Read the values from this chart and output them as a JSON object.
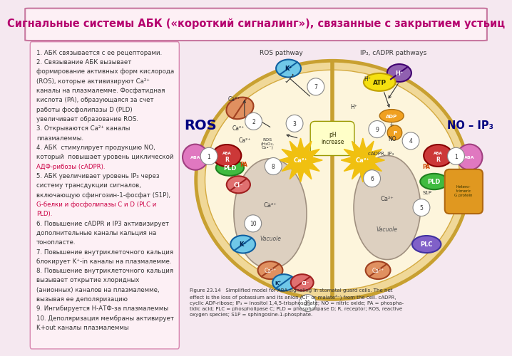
{
  "title": "Сигнальные системы АБК («короткий сигналинг»), связанные с закрытием устьиц",
  "title_color": "#b5006e",
  "title_bg": "#fdf0f5",
  "title_border": "#c878a0",
  "title_fontsize": 10.5,
  "left_text_bg": "#fdf0f5",
  "left_text_border": "#d888b0",
  "left_text_lines": [
    [
      "1. АБК связывается с ее рецепторами.",
      "black"
    ],
    [
      "2. Связывание ",
      "black"
    ],
    [
      "АБК",
      "red"
    ],
    [
      " вызывает",
      "black"
    ],
    [
      "формирование активных форм кислорода",
      "black"
    ],
    [
      "(ROS),",
      "red"
    ],
    [
      " которые активизируют ",
      "black"
    ],
    [
      "Ca²⁺",
      "red"
    ],
    [
      "каналы на плазмалемме. ",
      "black"
    ],
    [
      "Фосфатидная",
      "red"
    ],
    [
      "кислота (PA),",
      "red"
    ],
    [
      " образующаяся за счет",
      "black"
    ],
    [
      "работы ",
      "black"
    ],
    [
      "фосфолипазы D (PLD)",
      "red"
    ],
    [
      "увеличивает образование ",
      "black"
    ],
    [
      "ROS.",
      "red"
    ],
    [
      "3. Открываются ",
      "black"
    ],
    [
      "Ca²⁺ каналы",
      "red"
    ],
    [
      "плазмалеммы.",
      "black"
    ],
    [
      "4. АБК  стимулирует продукцию ",
      "black"
    ],
    [
      "NO,",
      "red"
    ],
    [
      "который  повышает уровень циклической",
      "black"
    ],
    [
      "АДФ-рибозы (cADPR).",
      "red"
    ],
    [
      "5. АБК увеличивает уровень ",
      "black"
    ],
    [
      "IP₃",
      "red"
    ],
    [
      " через",
      "black"
    ],
    [
      "систему трансдукции сигналов,",
      "black"
    ],
    [
      "включающую ",
      "black"
    ],
    [
      "сфингозин-1-фосфат (S1P),",
      "red"
    ],
    [
      "G-белки и фосфолипазы C и D (PLC и",
      "red"
    ],
    [
      "PLD).",
      "red"
    ],
    [
      "6. Повышение ",
      "black"
    ],
    [
      "cADPR",
      "red"
    ],
    [
      " и ",
      "black"
    ],
    [
      "IP3",
      "red"
    ],
    [
      " активизирует",
      "black"
    ],
    [
      "дополнительные каналы кальция на",
      "black"
    ],
    [
      "тонопласте.",
      "black"
    ],
    [
      "7. Повышение внутриклеточного кальция",
      "black"
    ],
    [
      "блокирует ",
      "black"
    ],
    [
      "K⁺-in каналы",
      "red"
    ],
    [
      " на плазмалемме.",
      "black"
    ],
    [
      "8. Повышение внутриклеточного кальция",
      "black"
    ],
    [
      "вызывает открытие ",
      "black"
    ],
    [
      "хлоридных",
      "red"
    ],
    [
      "(анионных) каналов на плазмалемме,",
      "black"
    ],
    [
      "вызывая ее деполяризацию",
      "black"
    ],
    [
      "9. Ингибируется ",
      "black"
    ],
    [
      "Н-АТФ-за",
      "red"
    ],
    [
      " плазмалеммы",
      "black"
    ],
    [
      "10. Деполяризация мембраны активирует",
      "black"
    ],
    [
      "K+out каналы",
      "red"
    ],
    [
      " плазмалеммы",
      "black"
    ]
  ],
  "figure_caption": "Figure 23.14   Simplified model for ABA signaling in stomatal guard cells. The net\neffect is the loss of potassium and its anion (Cl⁻ or malate²⁻) from the cell. cADPR,\ncyclic ADP-ribose; IP₃ = inositol 1,4,5-trisphosphate; NO = nitric oxide; PA = phospha-\ntidic acid; PLC = phospholipase C; PLD = phospholipase D; R, receptor; ROS, reactive\noxygen species; S1P = sphingosine-1-phosphate.",
  "ros_label": "ROS",
  "no_ip3_label": "NO – IP₃",
  "ros_pathway_label": "ROS pathway",
  "ip3_cadpr_label": "IP₃, cADPR pathways"
}
